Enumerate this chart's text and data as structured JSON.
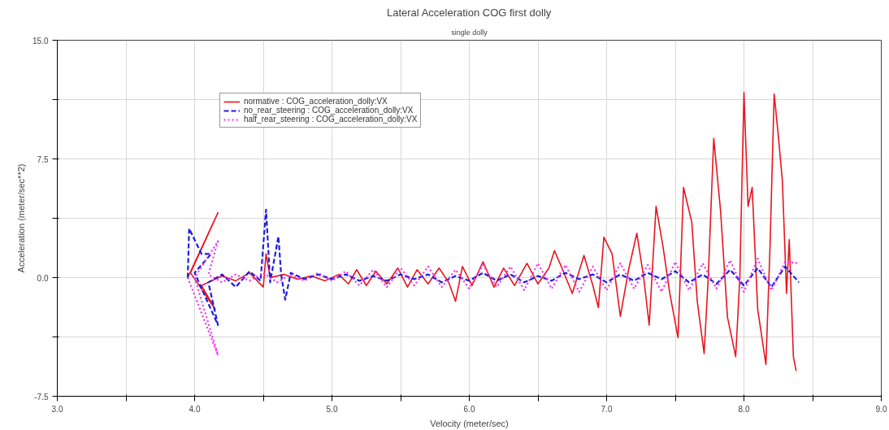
{
  "chart_data": {
    "type": "line",
    "title": "Lateral Acceleration COG first dolly",
    "subtitle": "single dolly",
    "xlabel": "Velocity (meter/sec)",
    "ylabel": "Acceleration (meter/sec**2)",
    "xlim": [
      3.0,
      9.0
    ],
    "ylim": [
      -7.5,
      15.0
    ],
    "xticks": [
      {
        "value": 3.0,
        "label": "3.0"
      },
      {
        "value": 3.5,
        "label": null
      },
      {
        "value": 4.0,
        "label": "4.0"
      },
      {
        "value": 4.5,
        "label": null
      },
      {
        "value": 5.0,
        "label": "5.0"
      },
      {
        "value": 5.5,
        "label": null
      },
      {
        "value": 6.0,
        "label": "6.0"
      },
      {
        "value": 6.5,
        "label": null
      },
      {
        "value": 7.0,
        "label": "7.0"
      },
      {
        "value": 7.5,
        "label": null
      },
      {
        "value": 8.0,
        "label": "8.0"
      },
      {
        "value": 8.5,
        "label": null
      },
      {
        "value": 9.0,
        "label": "9.0"
      }
    ],
    "yticks": [
      {
        "value": -7.5,
        "label": "-7.5"
      },
      {
        "value": -3.75,
        "label": null
      },
      {
        "value": 0,
        "label": "0.0"
      },
      {
        "value": 3.75,
        "label": null
      },
      {
        "value": 7.5,
        "label": "7.5"
      },
      {
        "value": 11.25,
        "label": null
      },
      {
        "value": 15.0,
        "label": "15.0"
      }
    ],
    "grid": true,
    "legend": "top left",
    "series": [
      {
        "name": "normative : COG_acceleration_dolly:VX",
        "color": "#e8141e",
        "line_style": "solid",
        "x": [
          3.95,
          4.17,
          3.97,
          4.15,
          4.05,
          4.2,
          4.3,
          4.4,
          4.5,
          4.52,
          4.55,
          4.65,
          4.75,
          4.85,
          4.95,
          5.05,
          5.12,
          5.18,
          5.25,
          5.32,
          5.4,
          5.48,
          5.55,
          5.62,
          5.7,
          5.78,
          5.85,
          5.9,
          5.95,
          6.02,
          6.1,
          6.18,
          6.25,
          6.33,
          6.42,
          6.5,
          6.58,
          6.62,
          6.68,
          6.75,
          6.835,
          6.9,
          6.94,
          6.98,
          7.04,
          7.1,
          7.16,
          7.22,
          7.27,
          7.31,
          7.36,
          7.41,
          7.46,
          7.52,
          7.56,
          7.62,
          7.66,
          7.71,
          7.74,
          7.78,
          7.83,
          7.88,
          7.94,
          7.97,
          8.0,
          8.03,
          8.06,
          8.1,
          8.16,
          8.19,
          8.22,
          8.25,
          8.28,
          8.31,
          8.33,
          8.36,
          8.38
        ],
        "values": [
          0,
          4.1,
          0.3,
          -2.0,
          -0.5,
          0.1,
          -0.2,
          0.3,
          -0.6,
          1.5,
          0.0,
          0.2,
          -0.1,
          0.1,
          -0.2,
          0.2,
          -0.4,
          0.5,
          -0.5,
          0.4,
          -0.4,
          0.6,
          -0.6,
          0.5,
          -0.4,
          0.6,
          -0.3,
          -1.5,
          0.7,
          -0.5,
          1.0,
          -0.6,
          0.6,
          -0.5,
          0.9,
          -0.4,
          0.6,
          1.7,
          0.5,
          -1.0,
          1.4,
          -0.5,
          -1.9,
          2.55,
          1.5,
          -2.45,
          0.5,
          2.8,
          0.0,
          -3.0,
          4.5,
          2.0,
          -1.0,
          -3.8,
          5.7,
          3.5,
          -1.5,
          -4.8,
          0.0,
          8.8,
          4.2,
          -2.5,
          -5.0,
          0.0,
          11.7,
          4.5,
          5.7,
          -2.0,
          -5.5,
          2.0,
          11.6,
          9.0,
          6.1,
          -1.0,
          2.4,
          -5.0,
          -5.9
        ]
      },
      {
        "name": "no_rear_steering : COG_acceleration_dolly:VX",
        "color": "#1e1ee0",
        "line_style": "dashed",
        "x": [
          3.95,
          3.96,
          4.05,
          4.12,
          4.0,
          4.17,
          4.1,
          4.2,
          4.3,
          4.4,
          4.48,
          4.52,
          4.55,
          4.61,
          4.63,
          4.66,
          4.7,
          4.8,
          4.9,
          5.0,
          5.1,
          5.2,
          5.3,
          5.4,
          5.5,
          5.6,
          5.7,
          5.8,
          5.9,
          6.0,
          6.1,
          6.2,
          6.3,
          6.4,
          6.5,
          6.6,
          6.7,
          6.8,
          6.9,
          7.0,
          7.1,
          7.2,
          7.3,
          7.4,
          7.5,
          7.6,
          7.7,
          7.8,
          7.9,
          8.0,
          8.1,
          8.2,
          8.3,
          8.4
        ],
        "values": [
          0,
          3.1,
          1.5,
          1.5,
          0.3,
          -3.0,
          -0.3,
          0.2,
          -0.6,
          0.4,
          -0.2,
          4.3,
          -0.3,
          2.6,
          0.2,
          -1.4,
          0.3,
          -0.1,
          0.2,
          -0.1,
          0.2,
          -0.2,
          0.1,
          -0.2,
          0.2,
          -0.1,
          0.2,
          -0.3,
          0.1,
          -0.2,
          0.3,
          -0.2,
          0.2,
          -0.3,
          0.1,
          -0.2,
          0.3,
          -0.1,
          0.2,
          -0.3,
          0.2,
          -0.2,
          0.3,
          -0.1,
          0.4,
          -0.3,
          0.2,
          -0.4,
          0.5,
          -0.5,
          0.6,
          -0.6,
          0.7,
          -0.3
        ]
      },
      {
        "name": "half_rear_steering : COG_acceleration_dolly:VX",
        "color": "#f030f0",
        "line_style": "dotted",
        "x": [
          3.95,
          4.17,
          4.0,
          4.17,
          4.1,
          4.2,
          4.3,
          4.4,
          4.5,
          4.6,
          4.7,
          4.8,
          4.9,
          5.0,
          5.1,
          5.2,
          5.3,
          5.4,
          5.5,
          5.6,
          5.7,
          5.8,
          5.9,
          6.0,
          6.1,
          6.2,
          6.3,
          6.4,
          6.5,
          6.6,
          6.7,
          6.8,
          6.9,
          7.0,
          7.1,
          7.2,
          7.3,
          7.4,
          7.5,
          7.6,
          7.7,
          7.8,
          7.9,
          8.0,
          8.1,
          8.2,
          8.3,
          8.4
        ],
        "values": [
          0,
          -4.9,
          0,
          2.3,
          0.2,
          -0.3,
          0.2,
          -0.2,
          0.3,
          -0.3,
          0.2,
          -0.2,
          0.3,
          -0.2,
          0.4,
          -0.5,
          0.5,
          -0.6,
          0.6,
          -0.5,
          0.7,
          -0.6,
          0.5,
          -0.7,
          0.8,
          -0.6,
          0.7,
          -0.8,
          0.9,
          -0.7,
          0.8,
          -0.9,
          0.7,
          -0.8,
          0.9,
          -0.7,
          0.8,
          -0.9,
          1.0,
          -0.8,
          0.9,
          -0.7,
          1.1,
          -0.9,
          1.2,
          -0.8,
          1.0,
          0.9
        ]
      }
    ]
  }
}
